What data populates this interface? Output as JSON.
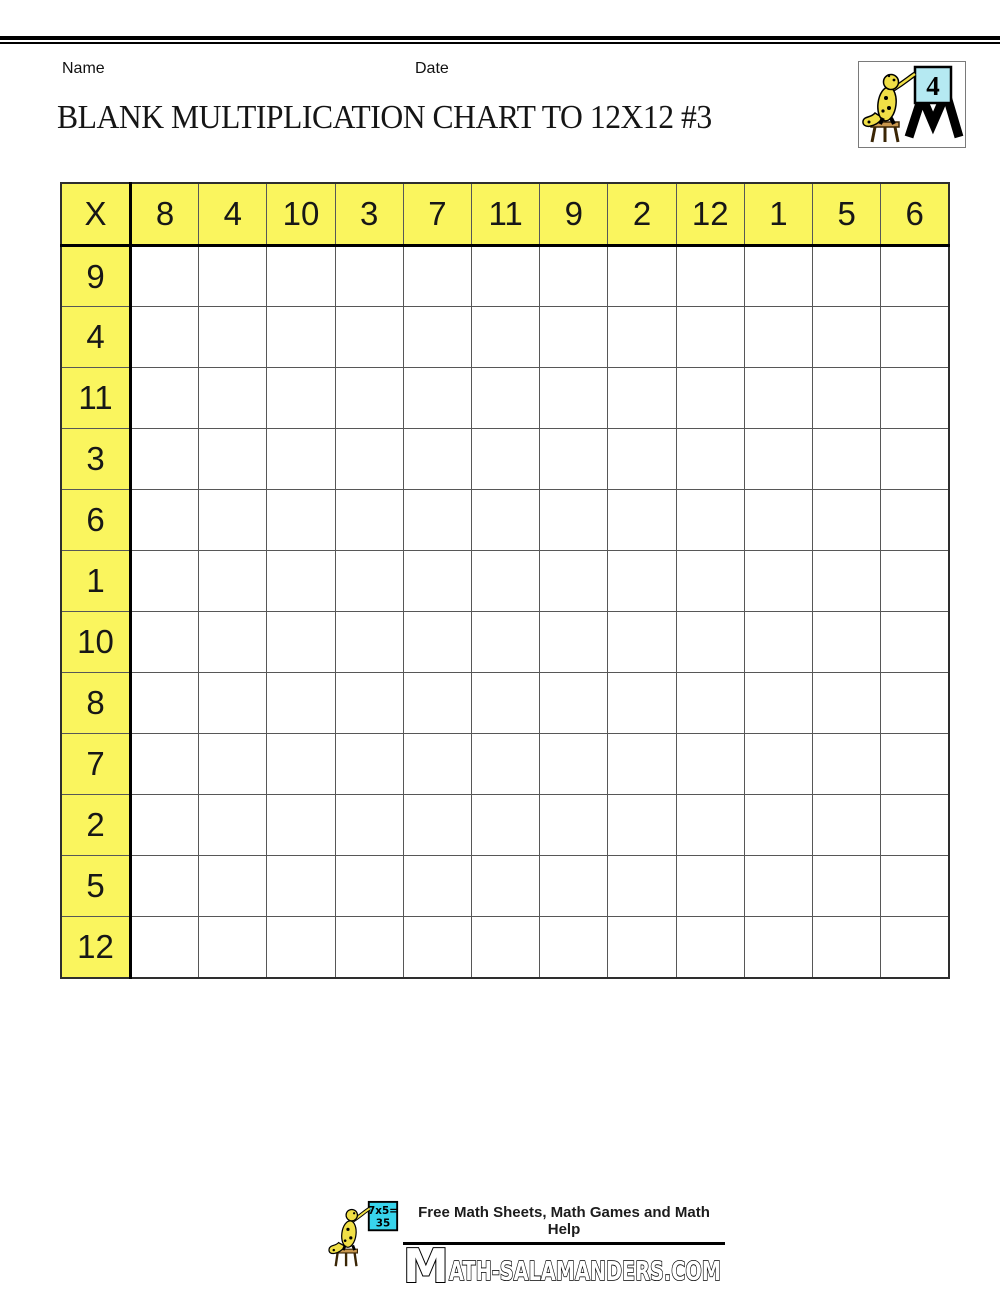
{
  "page": {
    "name_label": "Name",
    "date_label": "Date",
    "title": "BLANK MULTIPLICATION CHART TO 12X12 #3"
  },
  "header_logo": {
    "sign_number": "4"
  },
  "grid": {
    "corner": "X",
    "col_headers": [
      "8",
      "4",
      "10",
      "3",
      "7",
      "11",
      "9",
      "2",
      "12",
      "1",
      "5",
      "6"
    ],
    "row_headers": [
      "9",
      "4",
      "11",
      "3",
      "6",
      "1",
      "10",
      "8",
      "7",
      "2",
      "5",
      "12"
    ],
    "rows": 12,
    "cols": 12,
    "cells_blank": true
  },
  "footer": {
    "tagline": "Free Math Sheets, Math Games and Math Help",
    "wordmark_m": "M",
    "wordmark_rest": "ATH-SALAMANDERS.COM",
    "sign_line1": "7x5=",
    "sign_line2": "35"
  },
  "colors": {
    "header_yellow": "#FAF55E",
    "logo_sign_cyan": "#B5E9F2",
    "footer_sign_cyan": "#38D4EC",
    "salamander_yellow": "#F0DF46",
    "stool_brown": "#C9984F",
    "grid_line": "#575757",
    "thick_line": "#000000"
  }
}
